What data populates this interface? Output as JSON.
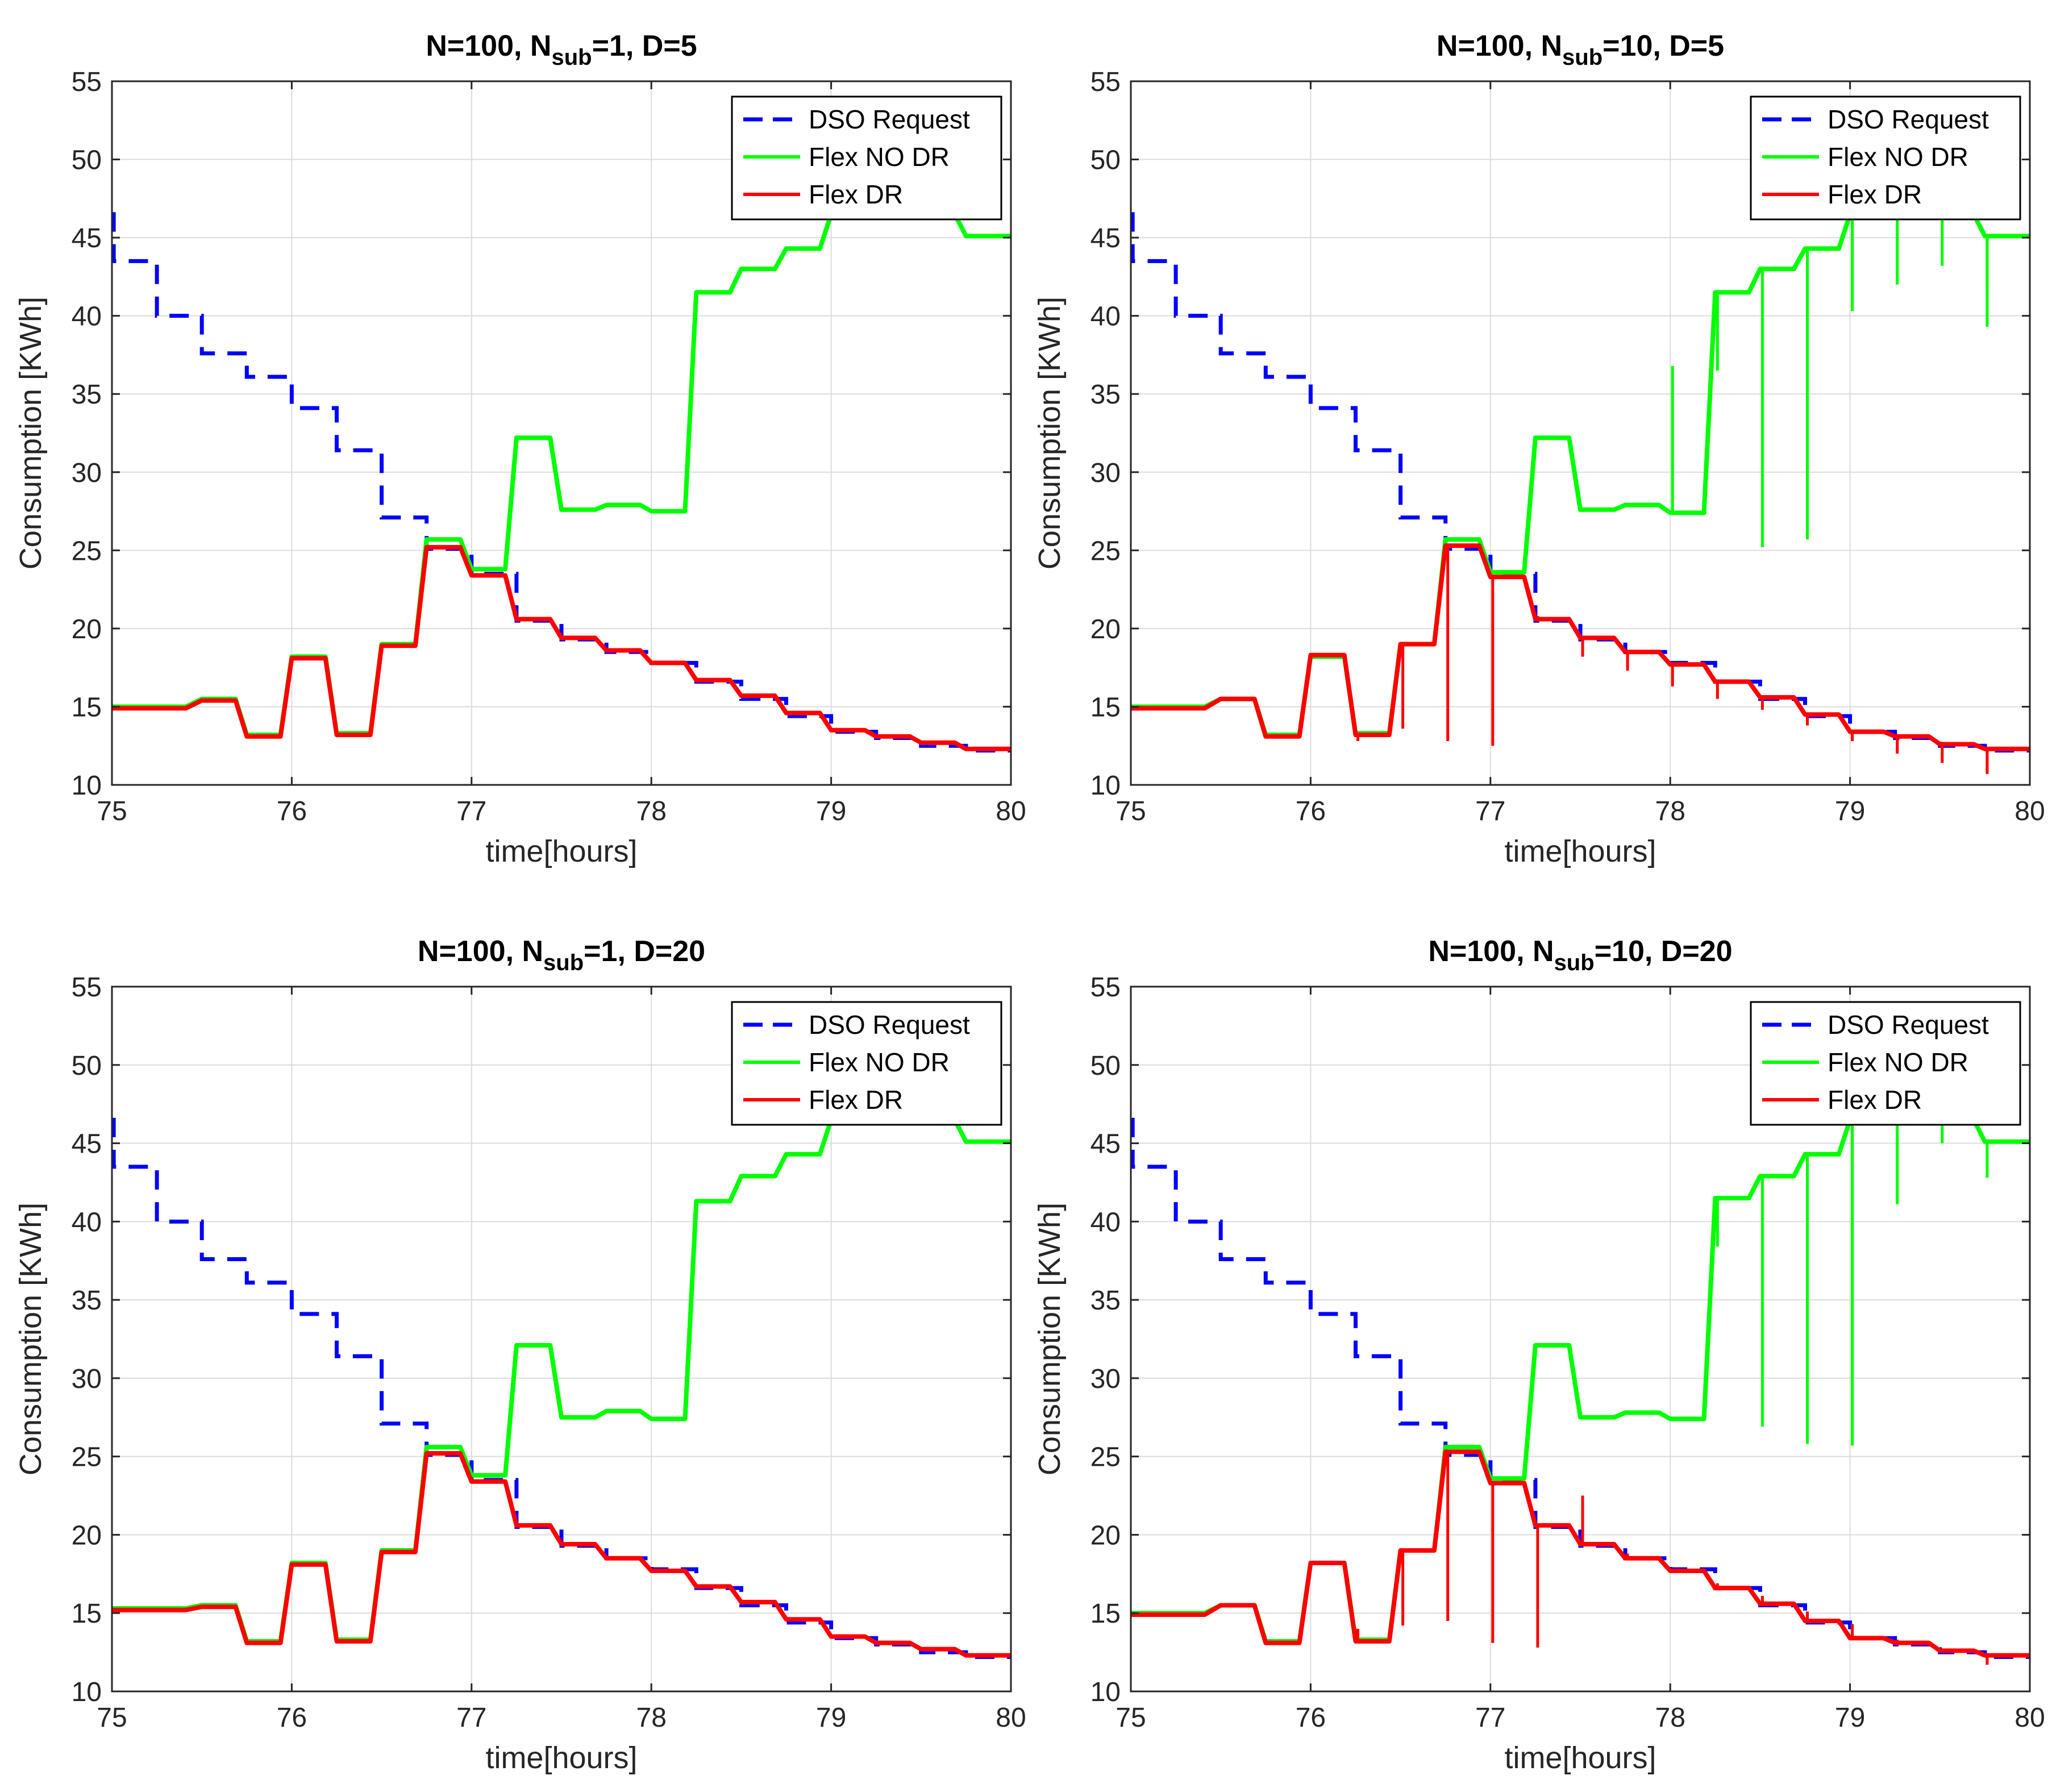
{
  "colors": {
    "dso": "#0000ff",
    "flex_no_dr": "#00ff00",
    "flex_dr": "#ff0000",
    "grid": "#dcdcdc",
    "axis": "#262626"
  },
  "chart_data": [
    {
      "type": "line",
      "title_parts": [
        "N=100, N",
        "sub",
        "=1, D=5"
      ],
      "xlabel": "time[hours]",
      "ylabel": "Consumption [KWh]",
      "xlim": [
        75,
        80
      ],
      "ylim": [
        10,
        55
      ],
      "xticks": [
        75,
        76,
        77,
        78,
        79,
        80
      ],
      "yticks": [
        10,
        15,
        20,
        25,
        30,
        35,
        40,
        45,
        50,
        55
      ],
      "grid": true,
      "legend_position": "top-right",
      "legend": [
        "DSO Request",
        "Flex NO DR",
        "Flex DR"
      ],
      "series": [
        {
          "name": "DSO Request",
          "style": "dashed",
          "x": [
            75,
            75.01,
            75.25,
            75.5,
            75.75,
            76,
            76.25,
            76.5,
            76.75,
            77,
            77.25,
            77.5,
            77.75,
            78,
            78.25,
            78.5,
            78.75,
            79,
            79.25,
            79.5,
            79.75,
            80
          ],
          "y": [
            46.5,
            43.5,
            40,
            37.6,
            36.1,
            34.1,
            31.4,
            27.1,
            25.1,
            23.5,
            20.5,
            19.3,
            18.5,
            17.8,
            16.6,
            15.5,
            14.4,
            13.4,
            13.0,
            12.5,
            12.2,
            12.2
          ]
        },
        {
          "name": "Flex NO DR",
          "style": "solid",
          "x": [
            75,
            75.5,
            75.75,
            76,
            76.25,
            76.5,
            76.75,
            77,
            77.25,
            77.5,
            77.75,
            78,
            78.25,
            78.5,
            78.75,
            79,
            79.25,
            79.5,
            79.75,
            80
          ],
          "y": [
            15.0,
            15.5,
            13.2,
            18.2,
            13.3,
            19.0,
            25.7,
            23.8,
            32.2,
            27.6,
            27.9,
            27.5,
            41.5,
            43.0,
            44.3,
            46.5,
            46.5,
            46.5,
            45.1,
            45.1
          ]
        },
        {
          "name": "Flex DR",
          "style": "solid",
          "x": [
            75,
            75.5,
            75.75,
            76,
            76.25,
            76.5,
            76.75,
            77,
            77.25,
            77.5,
            77.75,
            78,
            78.25,
            78.5,
            78.75,
            79,
            79.25,
            79.5,
            79.75,
            80
          ],
          "y": [
            14.9,
            15.4,
            13.1,
            18.1,
            13.2,
            18.9,
            25.2,
            23.4,
            20.6,
            19.4,
            18.6,
            17.8,
            16.7,
            15.7,
            14.6,
            13.5,
            13.1,
            12.7,
            12.3,
            12.3
          ]
        }
      ]
    },
    {
      "type": "line",
      "title_parts": [
        "N=100, N",
        "sub",
        "=10, D=5"
      ],
      "xlabel": "time[hours]",
      "ylabel": "Consumption [KWh]",
      "xlim": [
        75,
        80
      ],
      "ylim": [
        10,
        55
      ],
      "xticks": [
        75,
        76,
        77,
        78,
        79,
        80
      ],
      "yticks": [
        10,
        15,
        20,
        25,
        30,
        35,
        40,
        45,
        50,
        55
      ],
      "grid": true,
      "legend_position": "top-right",
      "legend": [
        "DSO Request",
        "Flex NO DR",
        "Flex DR"
      ],
      "series": [
        {
          "name": "DSO Request",
          "style": "dashed",
          "x": [
            75,
            75.01,
            75.25,
            75.5,
            75.75,
            76,
            76.25,
            76.5,
            76.75,
            77,
            77.25,
            77.5,
            77.75,
            78,
            78.25,
            78.5,
            78.75,
            79,
            79.25,
            79.5,
            79.75,
            80
          ],
          "y": [
            46.5,
            43.5,
            40,
            37.6,
            36.1,
            34.1,
            31.4,
            27.1,
            25.1,
            23.5,
            20.5,
            19.3,
            18.5,
            17.8,
            16.6,
            15.5,
            14.4,
            13.4,
            13.0,
            12.5,
            12.2,
            12.2
          ]
        },
        {
          "name": "Flex NO DR",
          "style": "solid",
          "x": [
            75,
            75.5,
            75.75,
            76,
            76.25,
            76.5,
            76.75,
            77,
            77.25,
            77.5,
            77.75,
            78,
            78.25,
            78.5,
            78.75,
            79,
            79.25,
            79.5,
            79.75,
            80
          ],
          "y": [
            15.0,
            15.5,
            13.2,
            18.2,
            13.3,
            19.0,
            25.7,
            23.6,
            32.2,
            27.6,
            27.9,
            27.4,
            41.5,
            43.0,
            44.3,
            46.5,
            46.5,
            46.5,
            45.1,
            45.1
          ],
          "dips": [
            36.8,
            36.5,
            25.2,
            25.7,
            40.3,
            42.0,
            43.2,
            41.8,
            39.3
          ]
        },
        {
          "name": "Flex DR",
          "style": "solid",
          "x": [
            75,
            75.5,
            75.75,
            76,
            76.25,
            76.5,
            76.75,
            77,
            77.25,
            77.5,
            77.75,
            78,
            78.25,
            78.5,
            78.75,
            79,
            79.25,
            79.5,
            79.75,
            80
          ],
          "y": [
            14.9,
            15.5,
            13.1,
            18.3,
            13.2,
            19.0,
            25.3,
            23.3,
            20.6,
            19.4,
            18.5,
            17.7,
            16.6,
            15.6,
            14.5,
            13.4,
            13.1,
            12.6,
            12.3,
            12.3
          ],
          "dips": [
            12.8,
            13.6,
            12.8,
            12.5,
            20.8,
            18.2,
            17.3,
            16.3,
            15.5,
            14.8,
            13.8,
            12.8,
            12.0,
            11.4,
            10.7,
            10.8
          ]
        }
      ]
    },
    {
      "type": "line",
      "title_parts": [
        "N=100, N",
        "sub",
        "=1, D=20"
      ],
      "xlabel": "time[hours]",
      "ylabel": "Consumption [KWh]",
      "xlim": [
        75,
        80
      ],
      "ylim": [
        10,
        55
      ],
      "xticks": [
        75,
        76,
        77,
        78,
        79,
        80
      ],
      "yticks": [
        10,
        15,
        20,
        25,
        30,
        35,
        40,
        45,
        50,
        55
      ],
      "grid": true,
      "legend_position": "top-right",
      "legend": [
        "DSO Request",
        "Flex NO DR",
        "Flex DR"
      ],
      "series": [
        {
          "name": "DSO Request",
          "style": "dashed",
          "x": [
            75,
            75.01,
            75.25,
            75.5,
            75.75,
            76,
            76.25,
            76.5,
            76.75,
            77,
            77.25,
            77.5,
            77.75,
            78,
            78.25,
            78.5,
            78.75,
            79,
            79.25,
            79.5,
            79.75,
            80
          ],
          "y": [
            46.5,
            43.5,
            40,
            37.6,
            36.1,
            34.1,
            31.4,
            27.1,
            25.1,
            23.5,
            20.5,
            19.3,
            18.5,
            17.8,
            16.6,
            15.5,
            14.4,
            13.4,
            13.0,
            12.5,
            12.2,
            12.2
          ]
        },
        {
          "name": "Flex NO DR",
          "style": "solid",
          "x": [
            75,
            75.5,
            75.75,
            76,
            76.25,
            76.5,
            76.75,
            77,
            77.25,
            77.5,
            77.75,
            78,
            78.25,
            78.5,
            78.75,
            79,
            79.25,
            79.5,
            79.75,
            80
          ],
          "y": [
            15.3,
            15.5,
            13.2,
            18.2,
            13.3,
            19.0,
            25.6,
            23.8,
            32.1,
            27.5,
            27.9,
            27.4,
            41.3,
            42.9,
            44.3,
            46.5,
            46.5,
            46.5,
            45.1,
            45.1
          ]
        },
        {
          "name": "Flex DR",
          "style": "solid",
          "x": [
            75,
            75.5,
            75.75,
            76,
            76.25,
            76.5,
            76.75,
            77,
            77.25,
            77.5,
            77.75,
            78,
            78.25,
            78.5,
            78.75,
            79,
            79.25,
            79.5,
            79.75,
            80
          ],
          "y": [
            15.2,
            15.4,
            13.1,
            18.1,
            13.2,
            18.9,
            25.2,
            23.4,
            20.6,
            19.4,
            18.5,
            17.7,
            16.7,
            15.7,
            14.6,
            13.5,
            13.1,
            12.7,
            12.3,
            12.3
          ]
        }
      ]
    },
    {
      "type": "line",
      "title_parts": [
        "N=100, N",
        "sub",
        "=10, D=20"
      ],
      "xlabel": "time[hours]",
      "ylabel": "Consumption [KWh]",
      "xlim": [
        75,
        80
      ],
      "ylim": [
        10,
        55
      ],
      "xticks": [
        75,
        76,
        77,
        78,
        79,
        80
      ],
      "yticks": [
        10,
        15,
        20,
        25,
        30,
        35,
        40,
        45,
        50,
        55
      ],
      "grid": true,
      "legend_position": "top-right",
      "legend": [
        "DSO Request",
        "Flex NO DR",
        "Flex DR"
      ],
      "series": [
        {
          "name": "DSO Request",
          "style": "dashed",
          "x": [
            75,
            75.01,
            75.25,
            75.5,
            75.75,
            76,
            76.25,
            76.5,
            76.75,
            77,
            77.25,
            77.5,
            77.75,
            78,
            78.25,
            78.5,
            78.75,
            79,
            79.25,
            79.5,
            79.75,
            80
          ],
          "y": [
            46.5,
            43.5,
            40,
            37.6,
            36.1,
            34.1,
            31.4,
            27.1,
            25.1,
            23.5,
            20.5,
            19.3,
            18.5,
            17.8,
            16.6,
            15.5,
            14.4,
            13.4,
            13.0,
            12.5,
            12.2,
            12.2
          ]
        },
        {
          "name": "Flex NO DR",
          "style": "solid",
          "x": [
            75,
            75.5,
            75.75,
            76,
            76.25,
            76.5,
            76.75,
            77,
            77.25,
            77.5,
            77.75,
            78,
            78.25,
            78.5,
            78.75,
            79,
            79.25,
            79.5,
            79.75,
            80
          ],
          "y": [
            15.0,
            15.5,
            13.2,
            18.2,
            13.3,
            19.0,
            25.6,
            23.6,
            32.1,
            27.5,
            27.8,
            27.4,
            41.5,
            42.9,
            44.3,
            46.5,
            46.5,
            46.5,
            45.1,
            45.1
          ],
          "dips": [
            38.4,
            26.9,
            25.8,
            25.7,
            41.1,
            45.0,
            44.8,
            42.8
          ]
        },
        {
          "name": "Flex DR",
          "style": "solid",
          "x": [
            75,
            75.5,
            75.75,
            76,
            76.25,
            76.5,
            76.75,
            77,
            77.25,
            77.5,
            77.75,
            78,
            78.25,
            78.5,
            78.75,
            79,
            79.25,
            79.5,
            79.75,
            80
          ],
          "y": [
            14.9,
            15.5,
            13.1,
            18.2,
            13.2,
            19.0,
            25.3,
            23.3,
            20.6,
            19.4,
            18.5,
            17.7,
            16.6,
            15.6,
            14.5,
            13.4,
            13.1,
            12.6,
            12.3,
            12.3
          ],
          "dips": [
            14.0,
            14.2,
            14.5,
            13.1,
            12.8,
            22.5,
            18.8,
            17.8,
            16.9,
            16.1,
            15.1,
            14.3,
            13.3,
            12.5,
            12.0,
            11.7
          ]
        }
      ]
    }
  ]
}
